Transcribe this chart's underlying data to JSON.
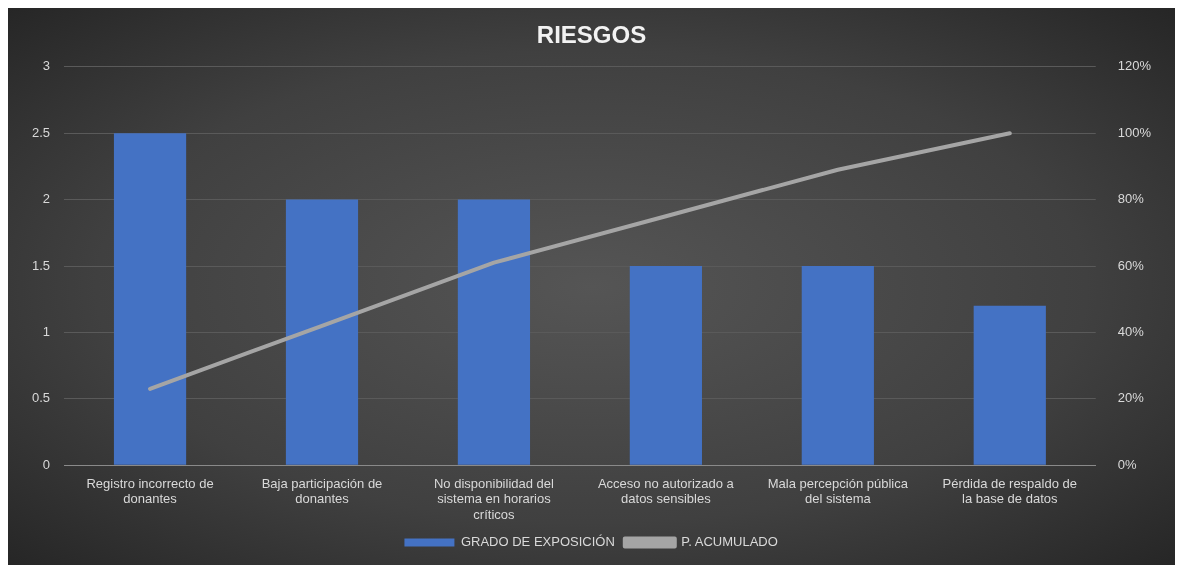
{
  "chart_data": {
    "type": "bar",
    "title": "RIESGOS",
    "categories": [
      "Registro incorrecto de donantes",
      "Baja participación de donantes",
      "No disponibilidad del sistema en horarios críticos",
      "Acceso no autorizado a datos sensibles",
      "Mala percepción pública del sistema",
      "Pérdida de respaldo de la base de datos"
    ],
    "series": [
      {
        "name": "GRADO DE EXPOSICIÓN",
        "color": "#4472c4",
        "values": [
          2.5,
          2,
          2,
          1.5,
          1.5,
          1.2
        ]
      },
      {
        "name": "P. ACUMULADO",
        "type": "line",
        "axis": "y2",
        "color": "#a5a5a5",
        "values": [
          23,
          42,
          61,
          75,
          89,
          100
        ]
      }
    ],
    "ylim": [
      0,
      3
    ],
    "yticks": [
      0,
      0.5,
      1,
      1.5,
      2,
      2.5,
      3
    ],
    "y2lim": [
      0,
      120
    ],
    "y2ticks": [
      {
        "value": 0,
        "label": "0%"
      },
      {
        "value": 20,
        "label": "20%"
      },
      {
        "value": 40,
        "label": "40%"
      },
      {
        "value": 60,
        "label": "60%"
      },
      {
        "value": 80,
        "label": "80%"
      },
      {
        "value": 100,
        "label": "100%"
      },
      {
        "value": 120,
        "label": "120%"
      }
    ],
    "grid": "y",
    "legend": "bottom",
    "marker": "none"
  }
}
